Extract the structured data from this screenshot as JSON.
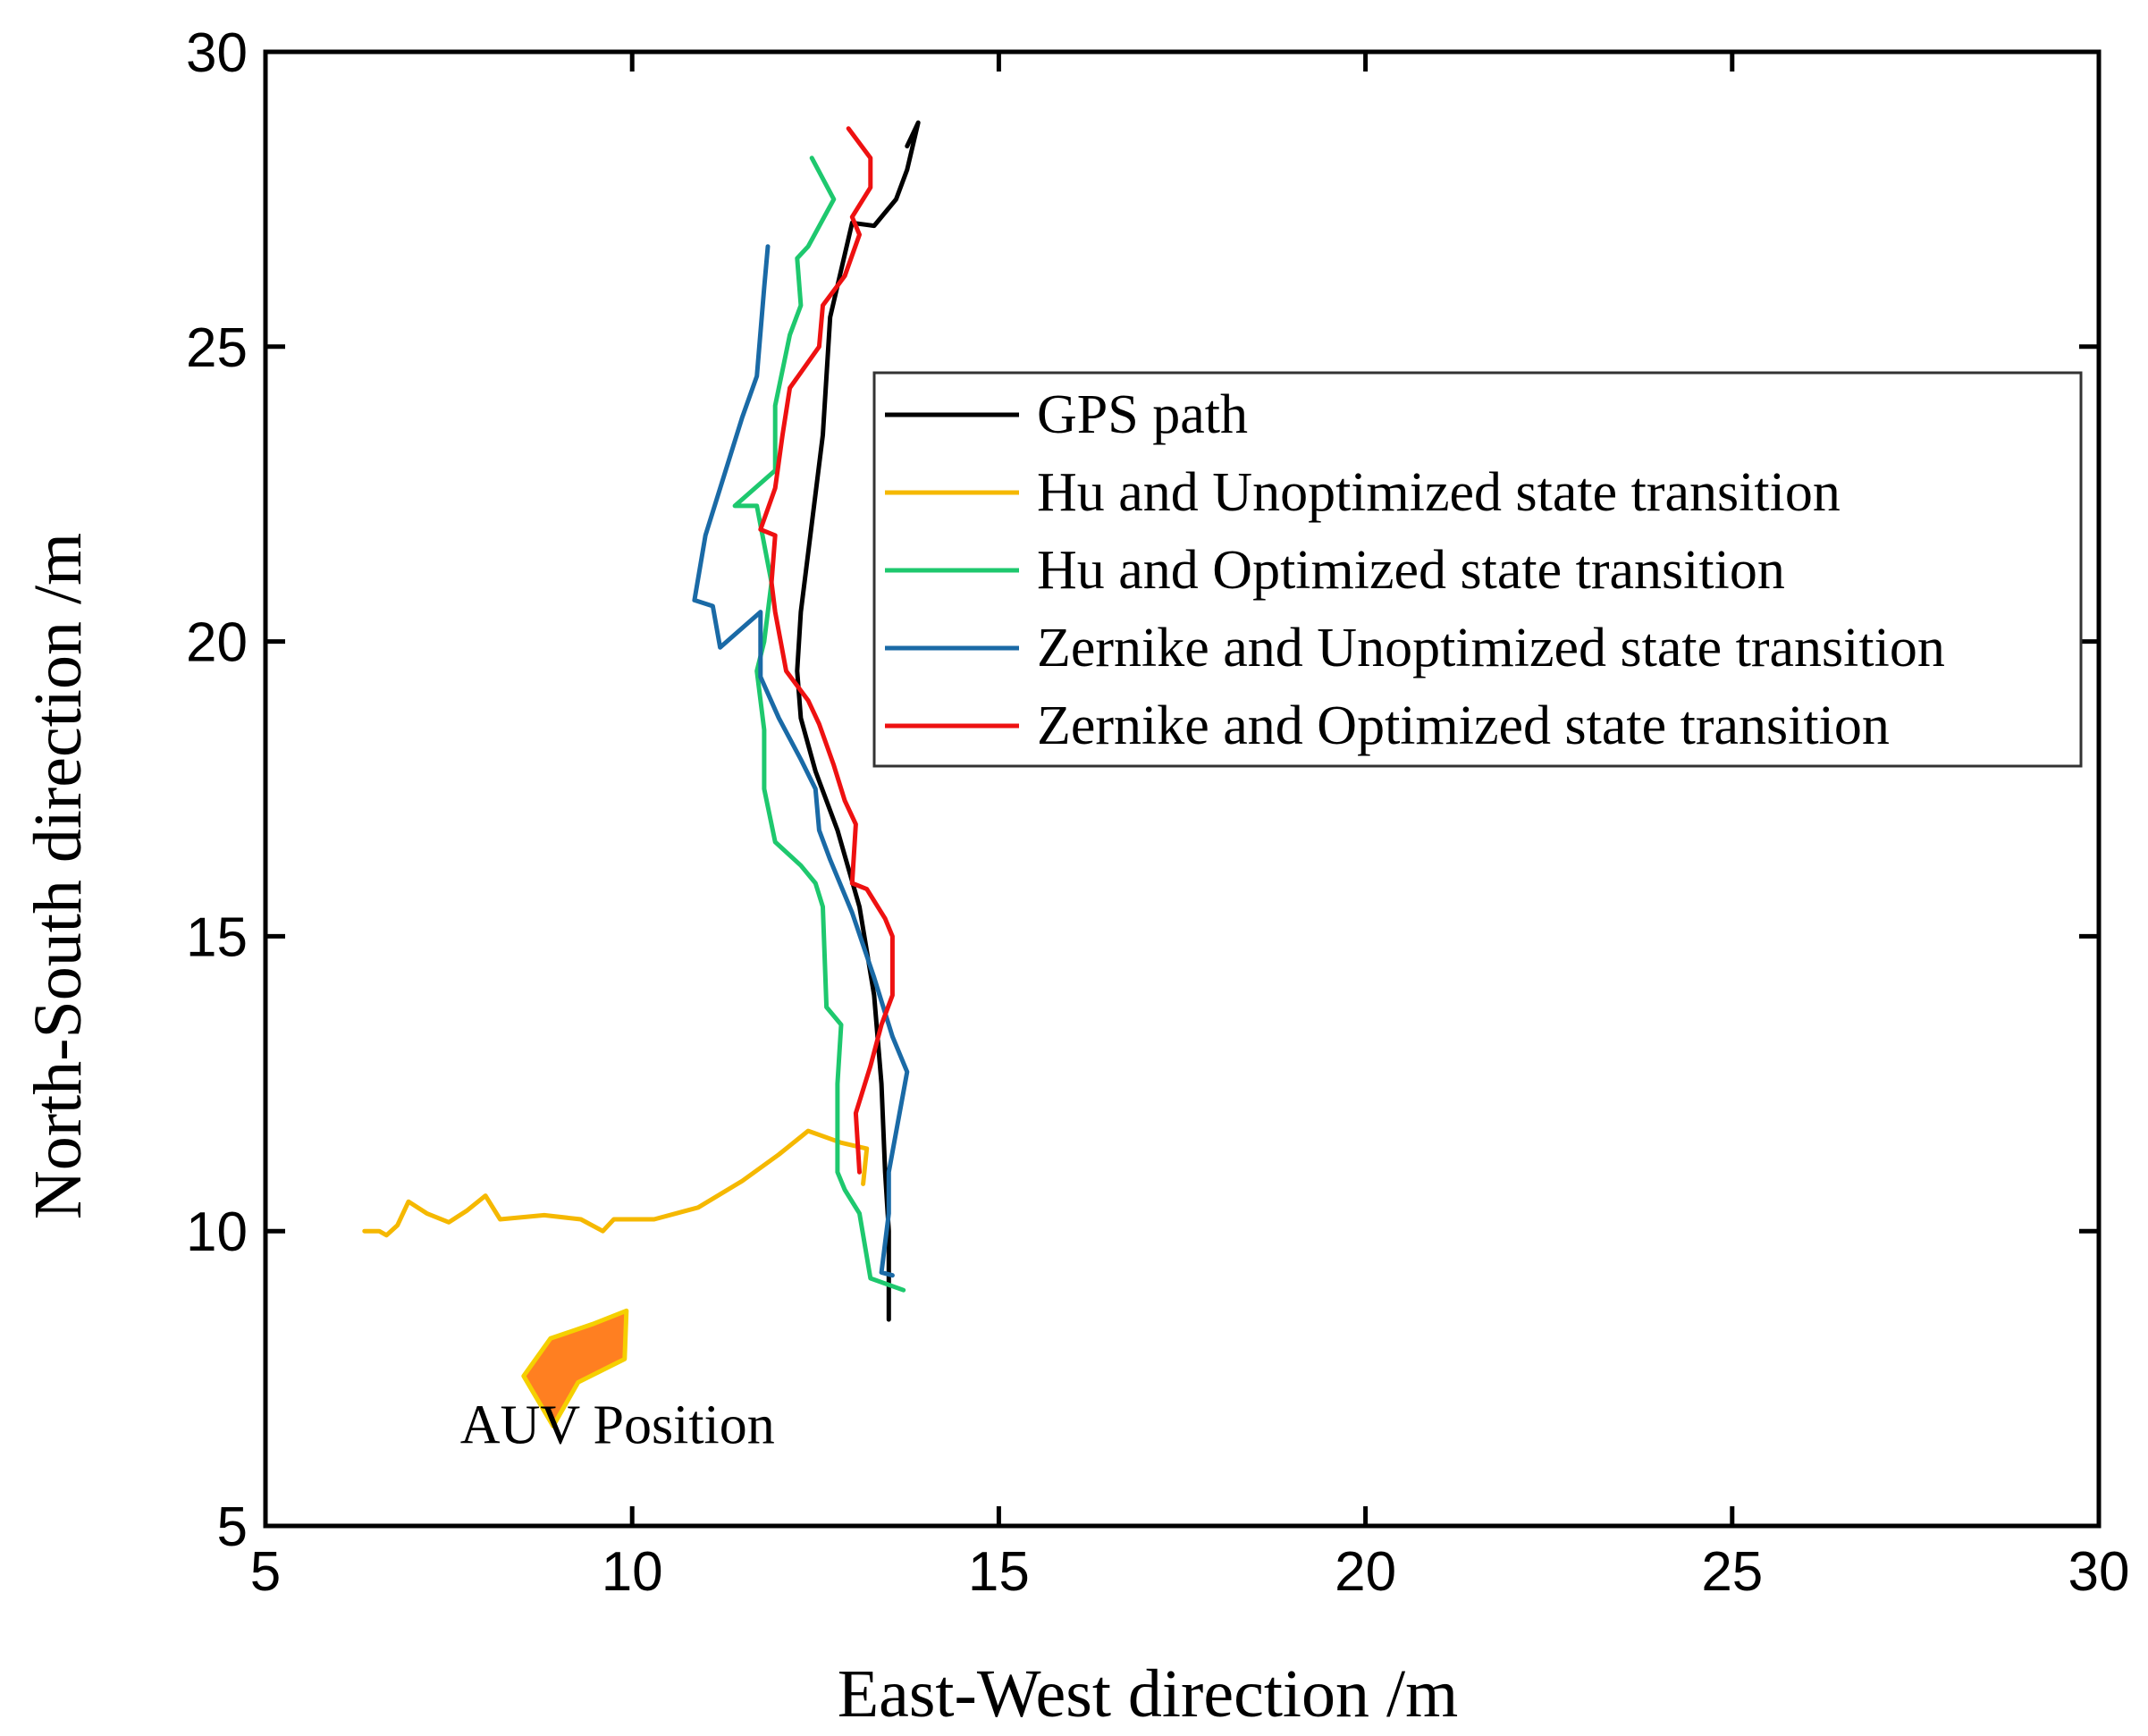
{
  "chart_data": {
    "type": "line",
    "title": "",
    "xlabel": "East-West direction /m",
    "ylabel": "North-South direction /m",
    "xlim": [
      5,
      30
    ],
    "ylim": [
      5,
      30
    ],
    "xticks": [
      5,
      10,
      15,
      20,
      25,
      30
    ],
    "yticks": [
      5,
      10,
      15,
      20,
      25,
      30
    ],
    "grid": false,
    "legend_position": "top-right",
    "series": [
      {
        "name": "GPS path",
        "color": "#000000",
        "x": [
          13.5,
          13.5,
          13.5,
          13.45,
          13.4,
          13.3,
          13.1,
          12.8,
          12.5,
          12.3,
          12.25,
          12.3,
          12.4,
          12.5,
          12.6,
          12.65,
          12.7,
          12.85,
          13.0,
          13.3,
          13.6,
          13.75,
          13.9,
          13.75
        ],
        "y": [
          8.5,
          9.0,
          10.0,
          11.0,
          12.5,
          14.0,
          15.5,
          16.8,
          17.8,
          18.7,
          19.5,
          20.5,
          21.5,
          22.5,
          23.5,
          24.5,
          25.5,
          26.3,
          27.1,
          27.05,
          27.5,
          28.0,
          28.8,
          28.4
        ]
      },
      {
        "name": "Hu and Unoptimized state transition",
        "color": "#f5b800",
        "x": [
          6.35,
          6.55,
          6.65,
          6.8,
          6.95,
          7.2,
          7.5,
          7.75,
          8.0,
          8.2,
          8.8,
          9.3,
          9.6,
          9.75,
          10.3,
          10.9,
          11.5,
          12.0,
          12.4,
          12.85,
          13.2,
          13.15
        ],
        "y": [
          10.0,
          10.0,
          9.93,
          10.1,
          10.5,
          10.3,
          10.15,
          10.35,
          10.6,
          10.2,
          10.27,
          10.2,
          10.0,
          10.2,
          10.2,
          10.4,
          10.85,
          11.3,
          11.7,
          11.5,
          11.4,
          10.8
        ]
      },
      {
        "name": "Hu and Optimized state transition",
        "color": "#1ec86e",
        "x": [
          13.7,
          13.25,
          13.1,
          12.9,
          12.8,
          12.8,
          12.85,
          12.65,
          12.6,
          12.5,
          12.3,
          11.95,
          11.8,
          11.8,
          11.7,
          11.8,
          11.9,
          11.7,
          11.4,
          11.95,
          11.95,
          12.15,
          12.3,
          12.25,
          12.4,
          12.75,
          12.45
        ],
        "y": [
          9.0,
          9.2,
          10.3,
          10.7,
          11.0,
          12.5,
          13.5,
          13.8,
          15.5,
          15.9,
          16.2,
          16.6,
          17.5,
          18.5,
          19.5,
          20.0,
          21.0,
          22.3,
          22.3,
          22.9,
          24.0,
          25.2,
          25.7,
          26.5,
          26.7,
          27.5,
          28.2
        ]
      },
      {
        "name": "Zernike and Unoptimized state transition",
        "color": "#1a6aa6",
        "x": [
          13.55,
          13.4,
          13.5,
          13.5,
          13.75,
          13.55,
          13.3,
          13.0,
          12.7,
          12.55,
          12.5,
          12.3,
          12.0,
          11.75,
          11.75,
          11.2,
          11.1,
          10.85,
          11.0,
          11.5,
          11.7,
          11.8,
          11.85
        ],
        "y": [
          9.25,
          9.3,
          10.3,
          11.0,
          12.7,
          13.3,
          14.3,
          15.4,
          16.3,
          16.8,
          17.5,
          18.0,
          18.7,
          19.4,
          20.5,
          19.9,
          20.6,
          20.7,
          21.8,
          23.8,
          24.5,
          26.0,
          26.7
        ]
      },
      {
        "name": "Zernike and Optimized state transition",
        "color": "#ee1111",
        "x": [
          13.1,
          13.05,
          13.25,
          13.4,
          13.55,
          13.55,
          13.45,
          13.2,
          13.0,
          13.05,
          12.9,
          12.75,
          12.55,
          12.4,
          12.1,
          11.95,
          11.9,
          11.95,
          11.75,
          11.95,
          12.05,
          12.15,
          12.55,
          12.6,
          12.9,
          13.1,
          13.0,
          13.25,
          13.25,
          12.95
        ],
        "y": [
          11.0,
          12.0,
          12.8,
          13.5,
          14.0,
          15.0,
          15.3,
          15.8,
          15.9,
          16.9,
          17.3,
          17.9,
          18.6,
          19.0,
          19.5,
          20.5,
          21.0,
          21.8,
          21.9,
          22.6,
          23.5,
          24.3,
          25.0,
          25.7,
          26.2,
          26.9,
          27.2,
          27.7,
          28.2,
          28.7
        ]
      }
    ],
    "annotations": [
      {
        "text": "AUV Position",
        "color": "#ff7f21",
        "marker": "boat",
        "x": 9.3,
        "y": 8.3,
        "label_x": 9.8,
        "label_y": 6.4
      }
    ]
  }
}
